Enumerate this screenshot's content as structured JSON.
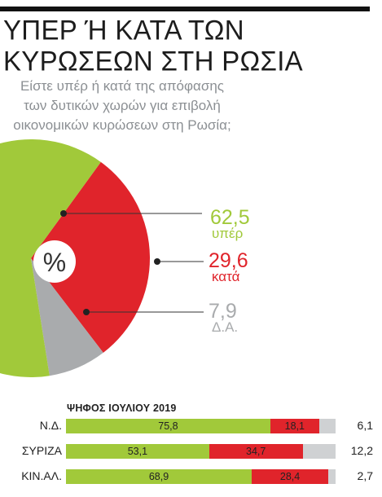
{
  "title_lines": [
    "ΥΠΕΡ Ή ΚΑΤΑ ΤΩΝ",
    "ΚΥΡΩΣΕΩΝ ΣΤΗ ΡΩΣΙΑ"
  ],
  "subtitle_lines": [
    "Είστε υπέρ ή κατά της απόφασης",
    "των δυτικών χωρών για επιβολή",
    "οικονομικών κυρώσεων στη Ρωσία;"
  ],
  "pie_center_label": "%",
  "colors": {
    "green": "#a1c93a",
    "red": "#e0242b",
    "gray": "#a9abad"
  },
  "chart_data": [
    {
      "type": "pie",
      "labels": [
        "υπέρ",
        "κατά",
        "Δ.Α."
      ],
      "values": [
        62.5,
        29.6,
        7.9
      ],
      "value_labels": [
        "62,5",
        "29,6",
        "7,9"
      ],
      "colors": [
        "#a1c93a",
        "#e0242b",
        "#a9abad"
      ]
    },
    {
      "type": "bar",
      "stacked": true,
      "orientation": "horizontal",
      "title": "ΨΗΦΟΣ ΙΟΥΛΙΟΥ 2019",
      "categories": [
        "Ν.Δ.",
        "ΣΥΡΙΖΑ",
        "ΚΙΝ.ΑΛ."
      ],
      "series": [
        {
          "values": [
            75.8,
            53.1,
            68.9
          ],
          "labels": [
            "75,8",
            "53,1",
            "68,9"
          ],
          "color": "#a1c93a"
        },
        {
          "values": [
            18.1,
            34.7,
            28.4
          ],
          "labels": [
            "18,1",
            "34,7",
            "28,4"
          ],
          "color": "#e0242b"
        },
        {
          "values": [
            6.1,
            12.2,
            2.7
          ],
          "labels": [
            "6,1",
            "12,2",
            "2,7"
          ],
          "color": "#cfd1d3"
        }
      ]
    }
  ]
}
